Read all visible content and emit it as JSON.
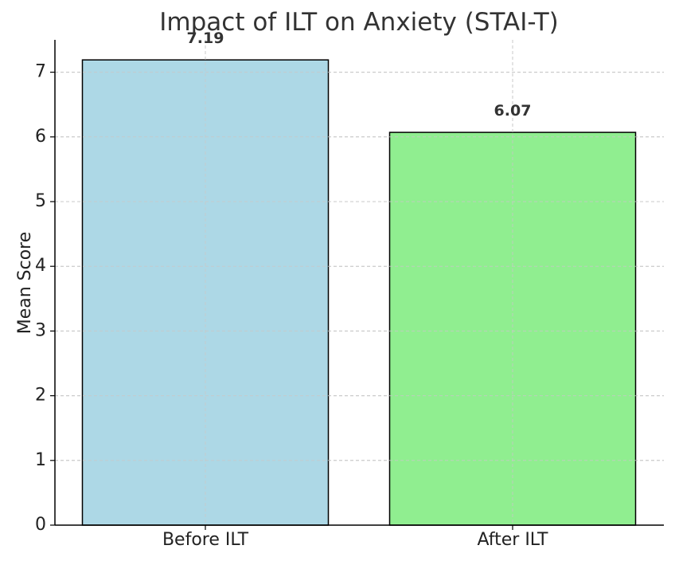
{
  "chart_data": {
    "type": "bar",
    "title": "Impact of ILT on Anxiety (STAI-T)",
    "xlabel": "",
    "ylabel": "Mean Score",
    "categories": [
      "Before ILT",
      "After ILT"
    ],
    "values": [
      7.19,
      6.07
    ],
    "data_labels": [
      "7.19",
      "6.07"
    ],
    "bar_colors": [
      "#add8e6",
      "#90ee90"
    ],
    "edge_color": "#000000",
    "ylim": [
      0,
      7.5
    ],
    "yticks": [
      0,
      1,
      2,
      3,
      4,
      5,
      6,
      7
    ],
    "ytick_labels": [
      "0",
      "1",
      "2",
      "3",
      "4",
      "5",
      "6",
      "7"
    ],
    "grid": true,
    "grid_color": "#c8c8c8",
    "legend": "none"
  }
}
